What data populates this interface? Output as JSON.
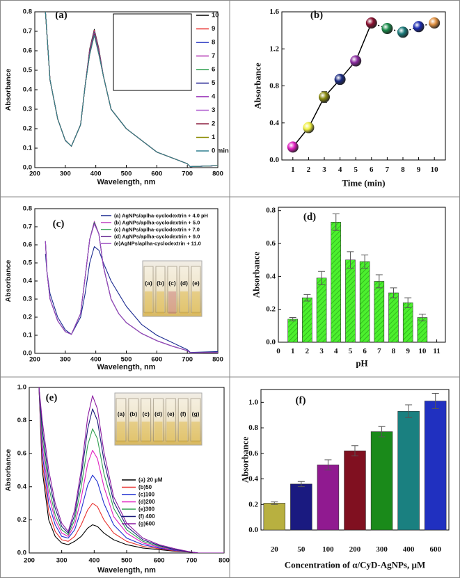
{
  "chart_data": [
    {
      "type": "line",
      "label": "(a)",
      "xlabel": "Wavelength, nm",
      "ylabel": "Absorbance",
      "x": [
        235,
        250,
        275,
        300,
        320,
        350,
        365,
        380,
        395,
        410,
        425,
        450,
        500,
        600,
        700,
        710,
        800
      ],
      "xlim": [
        200,
        800
      ],
      "xticks": [
        200,
        300,
        400,
        500,
        600,
        700,
        800
      ],
      "ylim": [
        0,
        0.8
      ],
      "yticks": [
        {
          "value": 0,
          "label": "0.0"
        },
        0.1,
        0.2,
        0.3,
        0.4,
        0.5,
        0.6,
        0.7,
        0.8
      ],
      "series": [
        {
          "name": "10",
          "color": "#000000",
          "values": [
            0.8,
            0.45,
            0.25,
            0.14,
            0.11,
            0.22,
            0.42,
            0.61,
            0.71,
            0.61,
            0.47,
            0.3,
            0.2,
            0.08,
            0.02,
            0.005,
            0.01
          ]
        },
        {
          "name": "9",
          "color": "#e8312f",
          "values": [
            0.8,
            0.45,
            0.25,
            0.14,
            0.11,
            0.22,
            0.42,
            0.605,
            0.705,
            0.605,
            0.47,
            0.3,
            0.2,
            0.08,
            0.02,
            0.005,
            0.01
          ]
        },
        {
          "name": "8",
          "color": "#1f2fbf",
          "values": [
            0.8,
            0.45,
            0.25,
            0.14,
            0.11,
            0.22,
            0.42,
            0.6,
            0.7,
            0.6,
            0.47,
            0.3,
            0.2,
            0.08,
            0.02,
            0.005,
            0.01
          ]
        },
        {
          "name": "7",
          "color": "#b02fb0",
          "values": [
            0.8,
            0.45,
            0.25,
            0.14,
            0.11,
            0.22,
            0.42,
            0.6,
            0.7,
            0.6,
            0.47,
            0.3,
            0.2,
            0.08,
            0.02,
            0.005,
            0.01
          ]
        },
        {
          "name": "6",
          "color": "#2f9f4f",
          "values": [
            0.8,
            0.45,
            0.25,
            0.14,
            0.11,
            0.22,
            0.42,
            0.595,
            0.695,
            0.595,
            0.47,
            0.3,
            0.2,
            0.08,
            0.02,
            0.005,
            0.01
          ]
        },
        {
          "name": "5",
          "color": "#1f1f8f",
          "values": [
            0.8,
            0.45,
            0.25,
            0.14,
            0.11,
            0.22,
            0.42,
            0.59,
            0.69,
            0.59,
            0.47,
            0.3,
            0.2,
            0.08,
            0.02,
            0.005,
            0.01
          ]
        },
        {
          "name": "4",
          "color": "#8f1fb0",
          "values": [
            0.8,
            0.45,
            0.25,
            0.14,
            0.11,
            0.22,
            0.42,
            0.59,
            0.69,
            0.59,
            0.47,
            0.3,
            0.2,
            0.08,
            0.02,
            0.005,
            0.01
          ]
        },
        {
          "name": "3",
          "color": "#b05fd0",
          "values": [
            0.8,
            0.45,
            0.25,
            0.14,
            0.11,
            0.22,
            0.42,
            0.585,
            0.685,
            0.585,
            0.47,
            0.3,
            0.2,
            0.08,
            0.02,
            0.005,
            0.01
          ]
        },
        {
          "name": "2",
          "color": "#8b1f3f",
          "values": [
            0.8,
            0.45,
            0.25,
            0.14,
            0.11,
            0.22,
            0.42,
            0.585,
            0.685,
            0.585,
            0.47,
            0.3,
            0.2,
            0.08,
            0.02,
            0.005,
            0.01
          ]
        },
        {
          "name": "1",
          "color": "#8b8b00",
          "values": [
            0.8,
            0.45,
            0.25,
            0.14,
            0.11,
            0.22,
            0.42,
            0.58,
            0.68,
            0.58,
            0.47,
            0.3,
            0.2,
            0.08,
            0.02,
            0.005,
            0.01
          ]
        },
        {
          "name": "0 min",
          "color": "#2f7f8f",
          "values": [
            0.8,
            0.45,
            0.25,
            0.14,
            0.11,
            0.22,
            0.42,
            0.58,
            0.68,
            0.58,
            0.47,
            0.3,
            0.2,
            0.08,
            0.02,
            0.005,
            0.01
          ]
        }
      ]
    },
    {
      "type": "scatter",
      "label": "(b)",
      "xlabel": "Time (min)",
      "ylabel": "Absorbance",
      "x": [
        1,
        2,
        3,
        4,
        5,
        6,
        7,
        8,
        9,
        10
      ],
      "values": [
        0.14,
        0.35,
        0.68,
        0.87,
        1.07,
        1.48,
        1.42,
        1.38,
        1.44,
        1.48
      ],
      "errors": [
        0.03,
        0.03,
        0.06,
        0.04,
        0.05,
        0.05,
        0.05,
        0.05,
        0.05,
        0.05
      ],
      "colors": [
        "#e020c0",
        "#f0f040",
        "#8a8a10",
        "#1a2a80",
        "#8a2aa0",
        "#8a1030",
        "#1a8a4a",
        "#1a7a7a",
        "#1a2ab0",
        "#e09040"
      ],
      "xlim": [
        0.3,
        10.7
      ],
      "xticks": [
        1,
        2,
        3,
        4,
        5,
        6,
        7,
        8,
        9,
        10
      ],
      "ylim": [
        0,
        1.6
      ],
      "yticks": [
        {
          "value": 0,
          "label": "0.0"
        },
        0.4,
        0.8,
        1.2,
        1.6
      ]
    },
    {
      "type": "line",
      "label": "(c)",
      "xlabel": "Wavelength, nm",
      "ylabel": "Absorbance",
      "x": [
        235,
        240,
        250,
        275,
        300,
        320,
        350,
        365,
        380,
        395,
        410,
        425,
        450,
        475,
        500,
        550,
        600,
        650,
        700,
        710,
        800
      ],
      "xlim": [
        200,
        800
      ],
      "xticks": [
        200,
        300,
        400,
        500,
        600,
        700,
        800
      ],
      "ylim": [
        0,
        0.8
      ],
      "yticks": [
        {
          "value": 0,
          "label": "0.0"
        },
        0.1,
        0.2,
        0.3,
        0.4,
        0.5,
        0.6,
        0.7,
        0.8
      ],
      "inset_labels": [
        "(a)",
        "(b)",
        "(c)",
        "(d)",
        "(e)"
      ],
      "series": [
        {
          "name": "(a) AgNPs/aplha-cyclodextrin + 4.0 pH",
          "color": "#1a2a90",
          "values": [
            0.55,
            0.45,
            0.33,
            0.2,
            0.13,
            0.105,
            0.2,
            0.33,
            0.5,
            0.59,
            0.57,
            0.5,
            0.4,
            0.33,
            0.26,
            0.16,
            0.1,
            0.06,
            0.02,
            0.005,
            0.01
          ]
        },
        {
          "name": "(b) AgNPs/aplha-cyclodextrin + 5.0",
          "color": "#c040c0",
          "values": [
            0.62,
            0.45,
            0.3,
            0.18,
            0.12,
            0.105,
            0.22,
            0.42,
            0.63,
            0.73,
            0.66,
            0.48,
            0.3,
            0.22,
            0.17,
            0.11,
            0.07,
            0.04,
            0.015,
            0.003,
            0.005
          ]
        },
        {
          "name": "(c) AgNPs/aplha-cyclodextrin + 7.0",
          "color": "#2f9f4f",
          "values": [
            0.62,
            0.45,
            0.3,
            0.18,
            0.12,
            0.105,
            0.22,
            0.42,
            0.63,
            0.725,
            0.66,
            0.48,
            0.3,
            0.22,
            0.17,
            0.11,
            0.07,
            0.04,
            0.015,
            0.003,
            0.005
          ]
        },
        {
          "name": "(d) AgNPs/aplha-cyclodextrin + 9.0",
          "color": "#5a1a8a",
          "values": [
            0.62,
            0.45,
            0.3,
            0.18,
            0.12,
            0.105,
            0.22,
            0.42,
            0.63,
            0.72,
            0.66,
            0.48,
            0.3,
            0.22,
            0.17,
            0.11,
            0.07,
            0.04,
            0.015,
            0.003,
            0.005
          ]
        },
        {
          "name": "(e)AgNPs/aplha-cyclodextrin + 11.0",
          "color": "#9a4ac0",
          "values": [
            0.62,
            0.45,
            0.3,
            0.18,
            0.12,
            0.105,
            0.22,
            0.42,
            0.63,
            0.715,
            0.66,
            0.48,
            0.3,
            0.22,
            0.17,
            0.11,
            0.07,
            0.04,
            0.015,
            0.003,
            0.005
          ]
        }
      ]
    },
    {
      "type": "bar",
      "label": "(d)",
      "xlabel": "pH",
      "ylabel": "Absorbance",
      "x": [
        1,
        2,
        3,
        4,
        5,
        6,
        7,
        8,
        9,
        10
      ],
      "values": [
        0.14,
        0.27,
        0.39,
        0.73,
        0.5,
        0.49,
        0.37,
        0.3,
        0.24,
        0.15
      ],
      "errors": [
        0.01,
        0.02,
        0.04,
        0.05,
        0.05,
        0.04,
        0.04,
        0.03,
        0.03,
        0.02
      ],
      "color": "#4cf02e",
      "xlim": [
        0,
        11.6
      ],
      "xticks": [
        0,
        1,
        2,
        3,
        4,
        5,
        6,
        7,
        8,
        9,
        10,
        11
      ],
      "ylim": [
        0,
        0.82
      ],
      "yticks": [
        {
          "value": 0,
          "label": "0.0"
        },
        0.2,
        0.4,
        0.6,
        0.8
      ]
    },
    {
      "type": "line",
      "label": "(e)",
      "xlabel": "Wavelength, nm",
      "ylabel": "Absorbance",
      "x": [
        230,
        240,
        260,
        280,
        300,
        320,
        340,
        360,
        380,
        395,
        410,
        430,
        460,
        500,
        550,
        600,
        650,
        700,
        720,
        800
      ],
      "xlim": [
        200,
        800
      ],
      "xticks": [
        200,
        300,
        400,
        500,
        600,
        700,
        800
      ],
      "ylim": [
        0,
        1
      ],
      "yticks": [
        {
          "value": 0,
          "label": "0.0"
        },
        0.2,
        0.4,
        0.6,
        0.8,
        {
          "value": 1,
          "label": "1.0"
        }
      ],
      "inset_labels": [
        "(a)",
        "(b)",
        "(c)",
        "(d)",
        "(e)",
        "(f)",
        "(g)"
      ],
      "series": [
        {
          "name": "(a) 20 µM",
          "color": "#000000",
          "values": [
            1.0,
            0.5,
            0.2,
            0.1,
            0.06,
            0.05,
            0.07,
            0.1,
            0.15,
            0.17,
            0.16,
            0.12,
            0.08,
            0.05,
            0.03,
            0.02,
            0.01,
            0.005,
            0.0,
            0.0
          ]
        },
        {
          "name": "(b)50",
          "color": "#e8312f",
          "values": [
            1.0,
            0.55,
            0.25,
            0.13,
            0.08,
            0.07,
            0.1,
            0.17,
            0.26,
            0.3,
            0.28,
            0.2,
            0.12,
            0.07,
            0.04,
            0.025,
            0.012,
            0.005,
            0.0,
            0.0
          ]
        },
        {
          "name": "(c)100",
          "color": "#1f2fd0",
          "values": [
            1.0,
            0.6,
            0.3,
            0.17,
            0.1,
            0.09,
            0.14,
            0.26,
            0.41,
            0.47,
            0.43,
            0.3,
            0.17,
            0.09,
            0.05,
            0.03,
            0.015,
            0.005,
            0.0,
            0.0
          ]
        },
        {
          "name": "(d)200",
          "color": "#e020c0",
          "values": [
            1.0,
            0.65,
            0.35,
            0.2,
            0.12,
            0.1,
            0.17,
            0.33,
            0.54,
            0.62,
            0.57,
            0.4,
            0.22,
            0.12,
            0.06,
            0.035,
            0.018,
            0.005,
            0.0,
            0.0
          ]
        },
        {
          "name": "(e)300",
          "color": "#2f9f4f",
          "values": [
            1.0,
            0.7,
            0.4,
            0.23,
            0.14,
            0.11,
            0.2,
            0.4,
            0.65,
            0.75,
            0.69,
            0.48,
            0.27,
            0.14,
            0.07,
            0.04,
            0.02,
            0.005,
            0.0,
            0.0
          ]
        },
        {
          "name": "(f) 400",
          "color": "#1a1a7a",
          "values": [
            1.0,
            0.75,
            0.45,
            0.27,
            0.16,
            0.12,
            0.23,
            0.46,
            0.75,
            0.87,
            0.8,
            0.56,
            0.31,
            0.16,
            0.08,
            0.045,
            0.02,
            0.005,
            0.0,
            0.0
          ]
        },
        {
          "name": "(g)600",
          "color": "#8a1aa0",
          "values": [
            1.0,
            0.8,
            0.5,
            0.3,
            0.18,
            0.13,
            0.26,
            0.5,
            0.82,
            0.95,
            0.87,
            0.61,
            0.34,
            0.18,
            0.09,
            0.05,
            0.025,
            0.005,
            0.0,
            0.0
          ]
        }
      ]
    },
    {
      "type": "bar",
      "label": "(f)",
      "xlabel": "Concentration of α/CyD-AgNPs, µM",
      "ylabel": "Absorbance",
      "categories": [
        "20",
        "50",
        "100",
        "200",
        "300",
        "400",
        "600"
      ],
      "values": [
        0.21,
        0.36,
        0.51,
        0.62,
        0.77,
        0.93,
        1.01
      ],
      "errors": [
        0.01,
        0.02,
        0.04,
        0.04,
        0.04,
        0.05,
        0.06
      ],
      "colors": [
        "#b8b040",
        "#1a1a80",
        "#901a90",
        "#801020",
        "#1a8a1a",
        "#1a8080",
        "#2030c0"
      ],
      "ylim": [
        0,
        1.1
      ],
      "yticks": [
        {
          "value": 0,
          "label": "0.0"
        },
        0.2,
        0.4,
        0.6,
        0.8,
        {
          "value": 1,
          "label": "1.0"
        }
      ]
    }
  ]
}
